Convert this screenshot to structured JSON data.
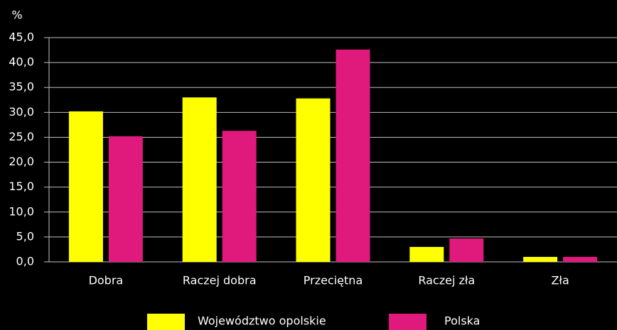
{
  "chart_data": {
    "type": "bar",
    "y_unit": "%",
    "categories": [
      "Dobra",
      "Raczej dobra",
      "Przeciętna",
      "Raczej zła",
      "Zła"
    ],
    "series": [
      {
        "name": "Województwo opolskie",
        "color": "#ffff00",
        "values": [
          30.2,
          33.0,
          32.8,
          3.0,
          1.0
        ]
      },
      {
        "name": "Polska",
        "color": "#e0197d",
        "values": [
          25.2,
          26.3,
          42.6,
          4.7,
          1.0
        ]
      }
    ],
    "ylim": [
      0,
      45
    ],
    "yticks": [
      {
        "value": 0,
        "label": "0,0"
      },
      {
        "value": 5,
        "label": "5,0"
      },
      {
        "value": 10,
        "label": "10,0"
      },
      {
        "value": 15,
        "label": "15,0"
      },
      {
        "value": 20,
        "label": "20,0"
      },
      {
        "value": 25,
        "label": "25,0"
      },
      {
        "value": 30,
        "label": "30,0"
      },
      {
        "value": 35,
        "label": "35,0"
      },
      {
        "value": 40,
        "label": "40,0"
      },
      {
        "value": 45,
        "label": "45,0"
      }
    ],
    "grid": true
  }
}
